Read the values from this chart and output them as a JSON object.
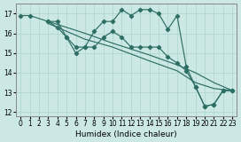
{
  "xlabel": "Humidex (Indice chaleur)",
  "bg_color": "#cce8e4",
  "line_color": "#2d6e65",
  "grid_color": "#b0d8d0",
  "ylim": [
    11.8,
    17.5
  ],
  "xlim": [
    -0.5,
    23.5
  ],
  "yticks": [
    12,
    13,
    14,
    15,
    16,
    17
  ],
  "xticks": [
    0,
    1,
    2,
    3,
    4,
    5,
    6,
    7,
    8,
    9,
    10,
    11,
    12,
    13,
    14,
    15,
    16,
    17,
    18,
    19,
    20,
    21,
    22,
    23
  ],
  "line1_x": [
    0,
    1,
    3,
    4,
    5,
    6,
    7,
    8,
    9,
    10,
    11,
    12,
    13,
    14,
    15,
    16,
    17,
    18,
    19,
    20,
    21,
    22,
    23
  ],
  "line1_y": [
    16.9,
    16.9,
    16.6,
    16.6,
    15.8,
    15.3,
    15.3,
    16.1,
    16.6,
    16.6,
    17.2,
    16.9,
    17.2,
    17.2,
    17.0,
    16.2,
    16.9,
    14.3,
    13.3,
    12.3,
    12.4,
    13.1,
    13.1
  ],
  "line2_x": [
    3,
    4,
    5,
    6,
    7,
    8,
    9,
    10,
    11,
    12,
    13,
    14,
    15,
    16,
    17,
    18,
    19,
    20,
    21,
    22,
    23
  ],
  "line2_y": [
    16.6,
    16.3,
    15.8,
    15.0,
    15.3,
    15.3,
    15.8,
    16.1,
    15.8,
    15.3,
    15.3,
    15.3,
    15.3,
    14.8,
    14.5,
    14.1,
    13.3,
    12.3,
    12.4,
    13.1,
    13.1
  ],
  "line3_x": [
    3,
    7,
    10,
    14,
    17,
    19,
    21,
    23
  ],
  "line3_y": [
    16.6,
    16.0,
    15.5,
    14.9,
    14.4,
    14.0,
    13.5,
    13.1
  ],
  "line4_x": [
    3,
    7,
    10,
    14,
    17,
    19,
    21,
    23
  ],
  "line4_y": [
    16.5,
    15.7,
    15.3,
    14.6,
    14.1,
    13.5,
    13.2,
    13.1
  ]
}
